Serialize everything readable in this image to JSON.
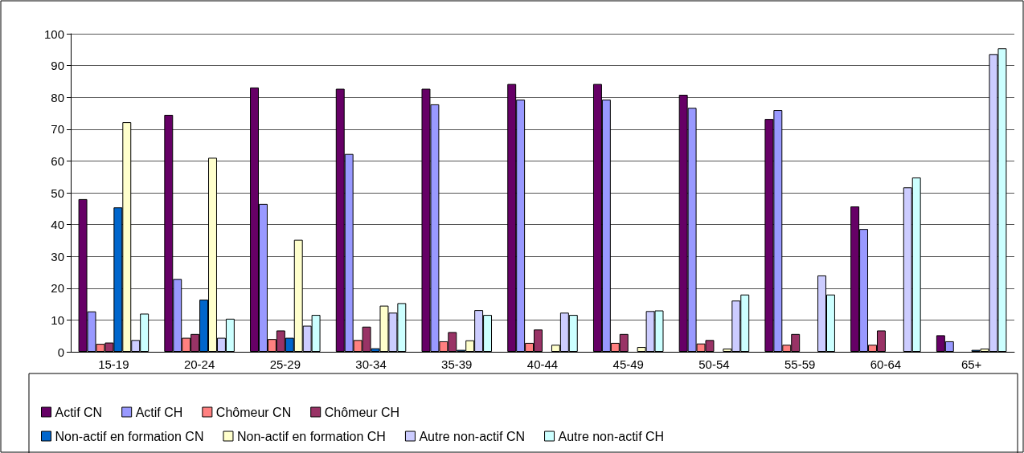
{
  "chart_data": {
    "type": "bar",
    "categories": [
      "15-19",
      "20-24",
      "25-29",
      "30-34",
      "35-39",
      "40-44",
      "45-49",
      "50-54",
      "55-59",
      "60-64",
      "65+"
    ],
    "series": [
      {
        "name": "Actif CN",
        "color": "#660066",
        "values": [
          48,
          74.5,
          83.1,
          82.7,
          82.7,
          84.2,
          84.2,
          80.8,
          73.2,
          45.7,
          5.2
        ]
      },
      {
        "name": "Actif CH",
        "color": "#9999ff",
        "values": [
          12.7,
          22.9,
          46.5,
          62.2,
          77.8,
          79.3,
          79.3,
          76.7,
          76,
          38.6,
          3.3
        ]
      },
      {
        "name": "Chômeur CN",
        "color": "#ff8080",
        "values": [
          2.5,
          4.4,
          4,
          3.7,
          3.3,
          2.8,
          2.8,
          2.6,
          2.2,
          2.2,
          null
        ]
      },
      {
        "name": "Chômeur CH",
        "color": "#993366",
        "values": [
          2.9,
          5.6,
          6.7,
          7.9,
          6.2,
          7,
          5.6,
          3.7,
          5.6,
          6.7,
          null
        ]
      },
      {
        "name": "Non-actif en formation CN",
        "color": "#0066cc",
        "values": [
          45.4,
          16.4,
          4.4,
          1.1,
          0.6,
          null,
          null,
          null,
          null,
          null,
          0.6
        ]
      },
      {
        "name": "Non-actif en formation CH",
        "color": "#ffffcc",
        "values": [
          72.2,
          61,
          35.2,
          14.5,
          3.6,
          2.2,
          1.5,
          1,
          null,
          null,
          1
        ]
      },
      {
        "name": "Autre non-actif CN",
        "color": "#ccccff",
        "values": [
          3.7,
          4.4,
          8.2,
          12.3,
          13.1,
          12.3,
          12.8,
          16.1,
          24,
          51.7,
          93.6
        ]
      },
      {
        "name": "Autre non-actif CH",
        "color": "#ccffff",
        "values": [
          12,
          10.4,
          11.6,
          15.3,
          11.6,
          11.6,
          13,
          18,
          18,
          54.8,
          95.4
        ]
      }
    ],
    "ylim": [
      0,
      100
    ],
    "yticks": [
      0,
      10,
      20,
      30,
      40,
      50,
      60,
      70,
      80,
      90,
      100
    ],
    "grid": "y",
    "legend": "bottom"
  }
}
